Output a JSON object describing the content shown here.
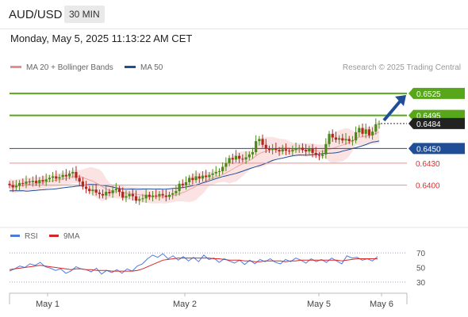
{
  "header": {
    "symbol": "AUD/USD",
    "period": "30 MIN"
  },
  "datetime": "Monday, May 5, 2025 11:13:22 AM CET",
  "legend": {
    "ma20": "MA 20 + Bollinger Bands",
    "ma50": "MA 50",
    "credit": "Research © 2025 Trading Central"
  },
  "rsi_legend": {
    "rsi": "RSI",
    "ma9": "9MA"
  },
  "colors": {
    "green": "#58a71b",
    "blue": "#1f4e96",
    "red": "#e84c4c",
    "candle_up": "#4a8a1a",
    "candle_down": "#b3261e",
    "band": "#fbe3e3",
    "rsi": "#4d7ce0",
    "rsi_ma": "#d62728"
  },
  "chart_data": [
    {
      "type": "candlestick",
      "title": "AUD/USD 30 MIN",
      "ylim": [
        0.635,
        0.654
      ],
      "x_labels": [
        "May 1",
        "May 2",
        "May 5",
        "May 6"
      ],
      "current_price": "0.6484",
      "levels": [
        {
          "value": 0.6525,
          "label": "0.6525",
          "type": "resistance",
          "style": "target"
        },
        {
          "value": 0.6495,
          "label": "0.6495",
          "type": "resistance",
          "style": "target"
        },
        {
          "value": 0.645,
          "label": "0.6450",
          "type": "pivot",
          "style": "pivot"
        },
        {
          "value": 0.643,
          "label": "0.6430",
          "type": "support",
          "style": "support"
        },
        {
          "value": 0.64,
          "label": "0.6400",
          "type": "support",
          "style": "support"
        }
      ],
      "closes": [
        0.64,
        0.6397,
        0.6399,
        0.6403,
        0.6402,
        0.6405,
        0.6404,
        0.6406,
        0.6403,
        0.6407,
        0.6405,
        0.6408,
        0.641,
        0.6412,
        0.6409,
        0.6411,
        0.6414,
        0.6412,
        0.6416,
        0.6418,
        0.641,
        0.6405,
        0.6398,
        0.6395,
        0.6392,
        0.6394,
        0.639,
        0.6388,
        0.6386,
        0.6391,
        0.6389,
        0.6393,
        0.6395,
        0.6391,
        0.6383,
        0.6385,
        0.6388,
        0.6385,
        0.6379,
        0.6381,
        0.6382,
        0.6387,
        0.6384,
        0.6386,
        0.6385,
        0.6388,
        0.6386,
        0.6384,
        0.6387,
        0.6389,
        0.6392,
        0.6402,
        0.64,
        0.6404,
        0.641,
        0.6407,
        0.6412,
        0.6409,
        0.6413,
        0.6411,
        0.6414,
        0.6416,
        0.6418,
        0.6419,
        0.6425,
        0.643,
        0.6437,
        0.6435,
        0.644,
        0.6436,
        0.6435,
        0.6438,
        0.6442,
        0.6445,
        0.646,
        0.6463,
        0.6455,
        0.645,
        0.6448,
        0.645,
        0.6448,
        0.6446,
        0.6449,
        0.6447,
        0.6446,
        0.6448,
        0.645,
        0.6451,
        0.6448,
        0.6446,
        0.645,
        0.6444,
        0.6441,
        0.644,
        0.6442,
        0.6456,
        0.647,
        0.6465,
        0.6462,
        0.6464,
        0.6461,
        0.6463,
        0.646,
        0.6461,
        0.6472,
        0.6478,
        0.647,
        0.6476,
        0.6468,
        0.6473,
        0.6483,
        0.6484
      ],
      "ma50_range": [
        0.6386,
        0.6455
      ],
      "forecast_arrow": {
        "from": 0.6484,
        "to": 0.6525
      }
    },
    {
      "type": "line",
      "title": "RSI",
      "ylim": [
        20,
        80
      ],
      "y_ticks": [
        "70",
        "50",
        "30"
      ],
      "series": [
        {
          "name": "RSI",
          "values": [
            45,
            48,
            52,
            50,
            55,
            53,
            57,
            51,
            49,
            46,
            48,
            42,
            45,
            51,
            48,
            47,
            44,
            49,
            41,
            46,
            43,
            47,
            42,
            48,
            45,
            52,
            55,
            62,
            67,
            64,
            69,
            62,
            66,
            60,
            65,
            59,
            64,
            58,
            67,
            61,
            63,
            57,
            62,
            59,
            56,
            60,
            54,
            60,
            55,
            61,
            58,
            62,
            57,
            55,
            61,
            58,
            63,
            60,
            56,
            62,
            58,
            61,
            57,
            63,
            59,
            55,
            66,
            63,
            64,
            60,
            62,
            59,
            65
          ]
        },
        {
          "name": "9MA",
          "values": [
            47,
            48,
            49,
            50,
            51,
            52,
            53,
            52,
            51,
            50,
            49,
            48,
            47,
            48,
            48,
            47,
            47,
            46,
            46,
            46,
            45,
            45,
            45,
            45,
            45,
            46,
            48,
            51,
            54,
            57,
            60,
            61,
            62,
            63,
            63,
            63,
            63,
            63,
            63,
            63,
            62,
            62,
            61,
            60,
            60,
            60,
            59,
            59,
            58,
            58,
            59,
            59,
            59,
            59,
            58,
            59,
            59,
            60,
            60,
            60,
            60,
            60,
            60,
            60,
            60,
            59,
            60,
            61,
            62,
            62,
            62,
            62,
            62
          ]
        }
      ]
    }
  ]
}
